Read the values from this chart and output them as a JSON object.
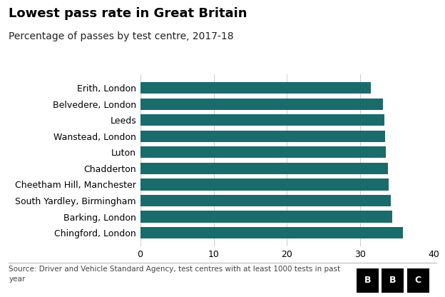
{
  "title": "Lowest pass rate in Great Britain",
  "subtitle": "Percentage of passes by test centre, 2017-18",
  "footnote": "Source: Driver and Vehicle Standard Agency, test centres with at least 1000 tests in past\nyear",
  "categories": [
    "Chingford, London",
    "Barking, London",
    "South Yardley, Birmingham",
    "Cheetham Hill, Manchester",
    "Chadderton",
    "Luton",
    "Wanstead, London",
    "Leeds",
    "Belvedere, London",
    "Erith, London"
  ],
  "values": [
    35.8,
    34.3,
    34.1,
    33.8,
    33.7,
    33.5,
    33.4,
    33.3,
    33.1,
    31.4
  ],
  "bar_color": "#1a6b6b",
  "xlim": [
    0,
    40
  ],
  "xticks": [
    0,
    10,
    20,
    30,
    40
  ],
  "background_color": "#ffffff",
  "title_fontsize": 13,
  "subtitle_fontsize": 10,
  "footnote_fontsize": 7.5,
  "tick_fontsize": 9,
  "label_fontsize": 9
}
